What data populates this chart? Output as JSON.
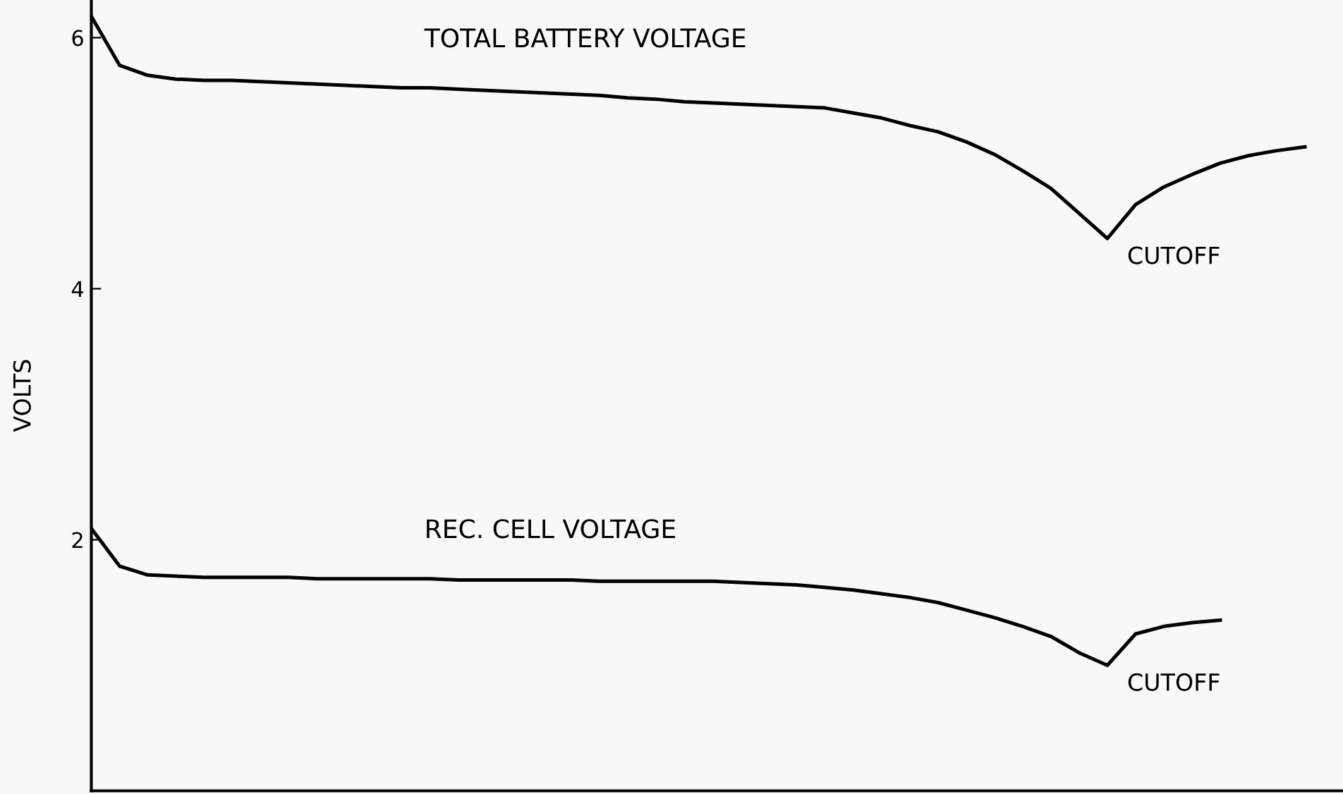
{
  "chart_data": {
    "type": "line",
    "ylabel": "VOLTS",
    "categories": [
      null,
      null,
      null,
      null,
      null,
      null,
      null,
      null,
      null,
      null,
      null,
      null,
      null,
      null,
      null,
      null,
      null,
      null,
      null,
      null,
      null,
      null,
      null,
      null,
      null,
      null,
      null,
      null,
      null,
      null,
      null,
      null,
      null,
      null,
      null,
      null,
      null,
      null,
      null,
      null,
      null,
      null,
      null,
      null
    ],
    "series": [
      {
        "name": "TOTAL BATTERY VOLTAGE",
        "color": "#000000",
        "values": [
          6.17,
          5.78,
          5.7,
          5.67,
          5.66,
          5.66,
          5.65,
          5.64,
          5.63,
          5.62,
          5.61,
          5.6,
          5.6,
          5.59,
          5.58,
          5.57,
          5.56,
          5.55,
          5.54,
          5.52,
          5.51,
          5.49,
          5.48,
          5.47,
          5.46,
          5.45,
          5.44,
          5.4,
          5.36,
          5.3,
          5.25,
          5.17,
          5.07,
          4.94,
          4.8,
          4.6,
          4.4,
          4.67,
          4.81,
          4.91,
          5.0,
          5.06,
          5.1,
          5.13
        ]
      },
      {
        "name": "REC. CELL VOLTAGE",
        "color": "#000000",
        "values": [
          2.09,
          1.79,
          1.72,
          1.71,
          1.7,
          1.7,
          1.7,
          1.7,
          1.69,
          1.69,
          1.69,
          1.69,
          1.69,
          1.68,
          1.68,
          1.68,
          1.68,
          1.68,
          1.67,
          1.67,
          1.67,
          1.67,
          1.67,
          1.66,
          1.65,
          1.64,
          1.62,
          1.6,
          1.57,
          1.54,
          1.5,
          1.44,
          1.38,
          1.31,
          1.23,
          1.1,
          1.0,
          1.25,
          1.31,
          1.34,
          1.36,
          null,
          null,
          null
        ]
      }
    ],
    "annotations": [
      "CUTOFF",
      "CUTOFF"
    ],
    "ylim": [
      0,
      6.3
    ],
    "yticks": [
      2,
      4,
      6
    ],
    "tick_labels": "y",
    "grid": false,
    "legend": false,
    "marker": "none",
    "line_style": "solid"
  }
}
